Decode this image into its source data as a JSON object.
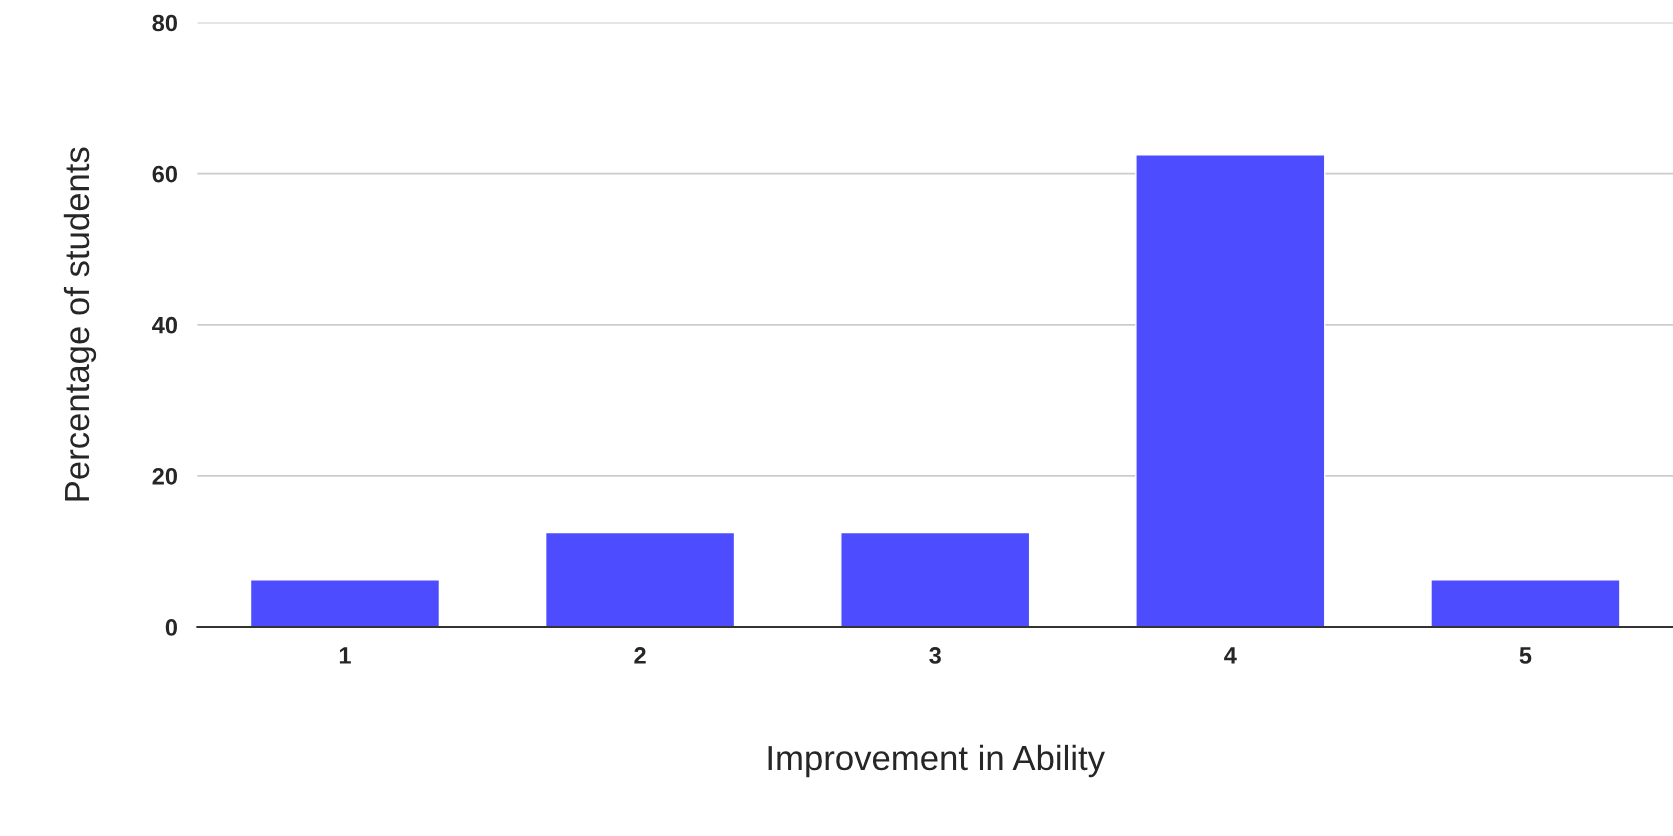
{
  "chart_data": {
    "type": "bar",
    "xlabel": "Improvement in Ability",
    "ylabel": "Percentage of students",
    "categories": [
      "1",
      "2",
      "3",
      "4",
      "5"
    ],
    "values": [
      6.25,
      12.5,
      12.5,
      62.5,
      6.25
    ],
    "color": "#4d4dff",
    "ylim": [
      0,
      80
    ],
    "yticks": [
      0,
      20,
      40,
      60,
      80
    ],
    "grid": "y"
  }
}
